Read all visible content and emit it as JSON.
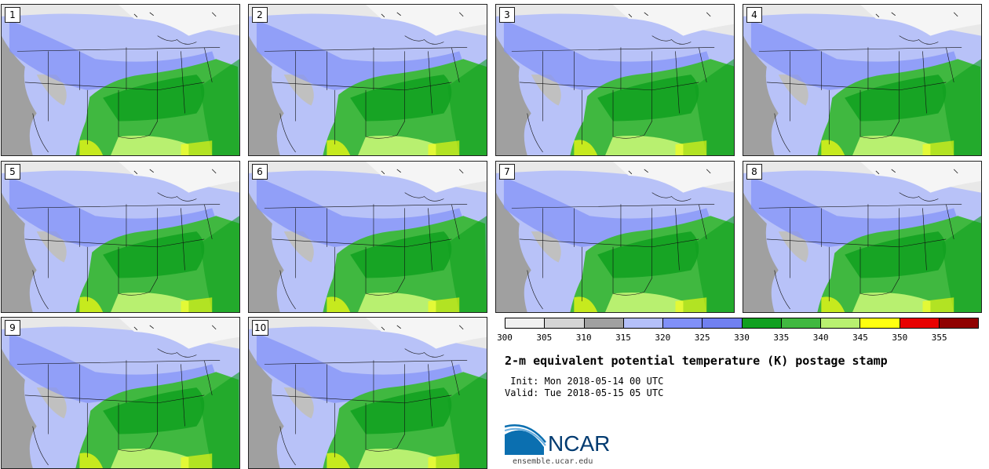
{
  "panels": [
    {
      "label": "1"
    },
    {
      "label": "2"
    },
    {
      "label": "3"
    },
    {
      "label": "4"
    },
    {
      "label": "5"
    },
    {
      "label": "6"
    },
    {
      "label": "7"
    },
    {
      "label": "8"
    },
    {
      "label": "9"
    },
    {
      "label": "10"
    }
  ],
  "colorbar": {
    "colors": [
      "#f0f0f0",
      "#d4d4d4",
      "#a0a0a0",
      "#b4c0fa",
      "#8090f8",
      "#7080f0",
      "#10a020",
      "#40b840",
      "#b8f070",
      "#ffff10",
      "#e80000",
      "#900000"
    ],
    "ticks": [
      "300",
      "305",
      "310",
      "315",
      "320",
      "325",
      "330",
      "335",
      "340",
      "345",
      "350",
      "355"
    ]
  },
  "title": "2-m equivalent potential temperature (K) postage stamp",
  "init": " Init: Mon 2018-05-14 00 UTC",
  "valid": "Valid: Tue 2018-05-15 05 UTC",
  "logo": {
    "text": "NCAR",
    "url": "ensemble.ucar.edu"
  }
}
